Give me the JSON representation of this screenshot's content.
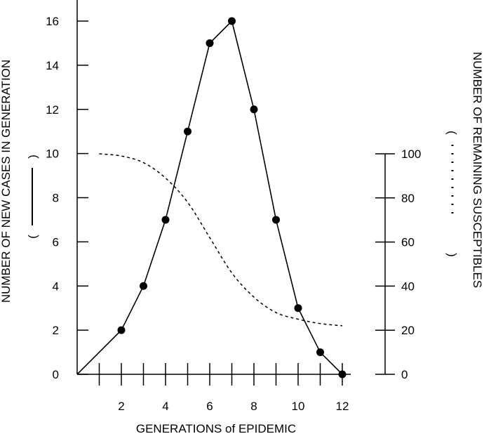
{
  "chart_data": {
    "type": "line",
    "xlabel": "GENERATIONS of EPIDEMIC",
    "ylabel_left": "NUMBER OF NEW CASES IN GENERATION",
    "ylabel_left_key_open": "(",
    "ylabel_left_key_close": ")",
    "ylabel_right": "NUMBER OF REMAINING SUSCEPTIBLES",
    "ylabel_right_key_open": "(",
    "ylabel_right_key_close": ")",
    "xlim": [
      0,
      12
    ],
    "ylim_left": [
      0,
      16
    ],
    "ylim_right": [
      0,
      100
    ],
    "x_tick_labels": [
      "2",
      "4",
      "6",
      "8",
      "10",
      "12"
    ],
    "y_left_tick_labels": [
      "0",
      "2",
      "4",
      "6",
      "8",
      "10",
      "12",
      "14",
      "16"
    ],
    "y_right_tick_labels": [
      "0",
      "20",
      "40",
      "60",
      "80",
      "100"
    ],
    "series": [
      {
        "axis": "left",
        "style": "solid-with-markers",
        "x": [
          0,
          2,
          3,
          4,
          5,
          6,
          7,
          8,
          9,
          10,
          11,
          12
        ],
        "y": [
          0,
          2,
          4,
          7,
          11,
          15,
          16,
          12,
          7,
          3,
          1,
          0
        ],
        "marker_x": [
          2,
          3,
          4,
          5,
          6,
          7,
          8,
          9,
          10,
          11,
          12
        ]
      },
      {
        "axis": "right",
        "style": "dotted",
        "x": [
          1,
          2,
          3,
          4,
          5,
          6,
          7,
          8,
          9,
          10,
          11,
          12
        ],
        "y": [
          100,
          99,
          96,
          89,
          78,
          62,
          46,
          35,
          28,
          25,
          23,
          22
        ]
      }
    ]
  }
}
